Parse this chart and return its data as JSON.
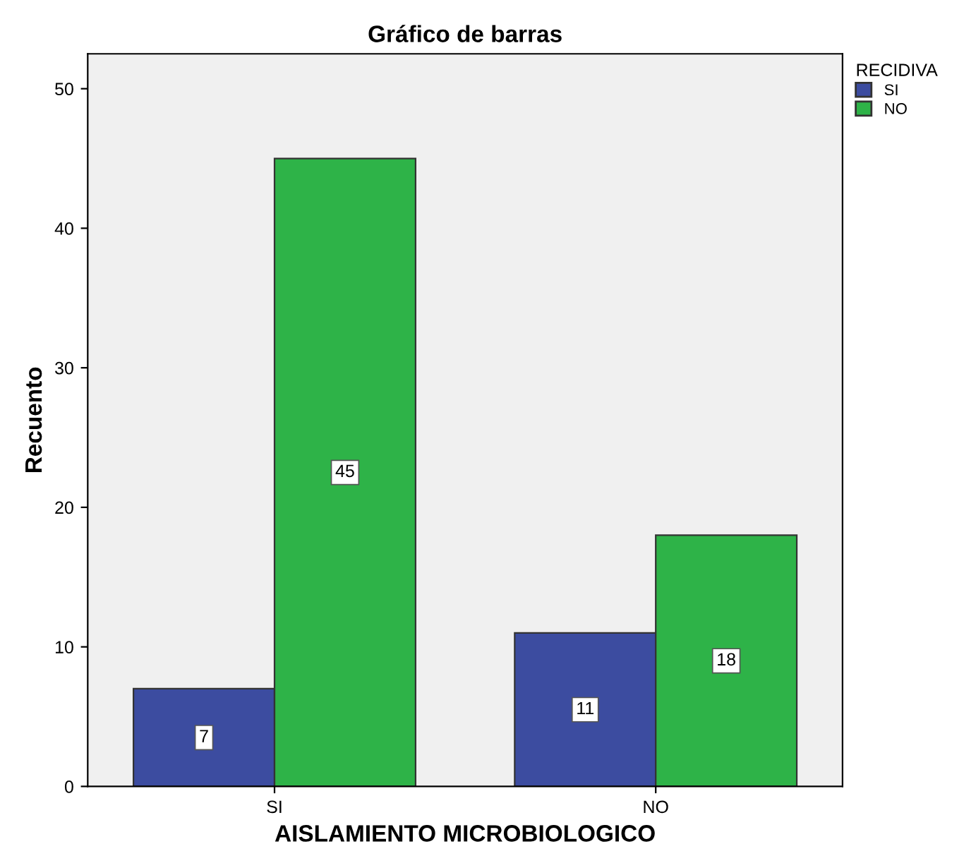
{
  "chart_data": {
    "type": "bar",
    "title": "Gráfico de barras",
    "xlabel": "AISLAMIENTO MICROBIOLOGICO",
    "ylabel": "Recuento",
    "legend_title": "RECIDIVA",
    "categories": [
      "SI",
      "NO"
    ],
    "series": [
      {
        "name": "SI",
        "color": "#3c4ca0",
        "values": [
          7,
          11
        ]
      },
      {
        "name": "NO",
        "color": "#2eb348",
        "values": [
          45,
          18
        ]
      }
    ],
    "ylim": [
      0,
      52.5
    ],
    "yticks": [
      0,
      10,
      20,
      30,
      40,
      50
    ],
    "data_labels": true,
    "legend": "top right",
    "grid": false
  }
}
